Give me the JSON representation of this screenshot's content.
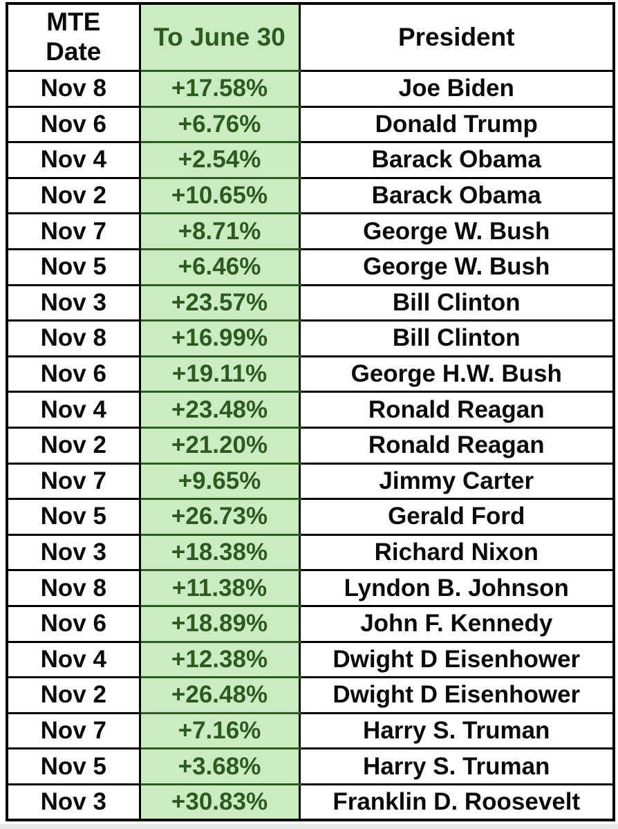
{
  "table": {
    "header": {
      "date_line1": "MTE",
      "date_line2": "Date",
      "to_june_30": "To June 30",
      "president": "President"
    },
    "rows": [
      {
        "date": "Nov 8",
        "ret": "+17.58%",
        "president": "Joe Biden"
      },
      {
        "date": "Nov 6",
        "ret": "+6.76%",
        "president": "Donald Trump"
      },
      {
        "date": "Nov 4",
        "ret": "+2.54%",
        "president": "Barack Obama"
      },
      {
        "date": "Nov 2",
        "ret": "+10.65%",
        "president": "Barack Obama"
      },
      {
        "date": "Nov 7",
        "ret": "+8.71%",
        "president": "George W. Bush"
      },
      {
        "date": "Nov 5",
        "ret": "+6.46%",
        "president": "George W. Bush"
      },
      {
        "date": "Nov 3",
        "ret": "+23.57%",
        "president": "Bill Clinton"
      },
      {
        "date": "Nov 8",
        "ret": "+16.99%",
        "president": "Bill Clinton"
      },
      {
        "date": "Nov 6",
        "ret": "+19.11%",
        "president": "George H.W. Bush"
      },
      {
        "date": "Nov 4",
        "ret": "+23.48%",
        "president": "Ronald Reagan"
      },
      {
        "date": "Nov 2",
        "ret": "+21.20%",
        "president": "Ronald Reagan"
      },
      {
        "date": "Nov 7",
        "ret": "+9.65%",
        "president": "Jimmy Carter"
      },
      {
        "date": "Nov 5",
        "ret": "+26.73%",
        "president": "Gerald Ford"
      },
      {
        "date": "Nov 3",
        "ret": "+18.38%",
        "president": "Richard Nixon"
      },
      {
        "date": "Nov 8",
        "ret": "+11.38%",
        "president": "Lyndon B. Johnson"
      },
      {
        "date": "Nov 6",
        "ret": "+18.89%",
        "president": "John F. Kennedy"
      },
      {
        "date": "Nov 4",
        "ret": "+12.38%",
        "president": "Dwight D Eisenhower"
      },
      {
        "date": "Nov 2",
        "ret": "+26.48%",
        "president": "Dwight D Eisenhower"
      },
      {
        "date": "Nov 7",
        "ret": "+7.16%",
        "president": "Harry S. Truman"
      },
      {
        "date": "Nov 5",
        "ret": "+3.68%",
        "president": "Harry S. Truman"
      },
      {
        "date": "Nov 3",
        "ret": "+30.83%",
        "president": "Franklin D. Roosevelt"
      }
    ]
  },
  "colors": {
    "green_cell_background": "#cbecc3",
    "green_text": "#2d5a21",
    "green_border": "#2e5a23",
    "black_border": "#000000",
    "text_black": "#0a0a0a",
    "page_background": "#ffffff",
    "bottom_strip_gray": "#e9e9e9"
  },
  "chart_data": {
    "type": "table",
    "title": "",
    "columns": [
      "MTE Date",
      "To June 30",
      "President"
    ],
    "rows": [
      [
        "Nov 8",
        "+17.58%",
        "Joe Biden"
      ],
      [
        "Nov 6",
        "+6.76%",
        "Donald Trump"
      ],
      [
        "Nov 4",
        "+2.54%",
        "Barack Obama"
      ],
      [
        "Nov 2",
        "+10.65%",
        "Barack Obama"
      ],
      [
        "Nov 7",
        "+8.71%",
        "George W. Bush"
      ],
      [
        "Nov 5",
        "+6.46%",
        "George W. Bush"
      ],
      [
        "Nov 3",
        "+23.57%",
        "Bill Clinton"
      ],
      [
        "Nov 8",
        "+16.99%",
        "Bill Clinton"
      ],
      [
        "Nov 6",
        "+19.11%",
        "George H.W. Bush"
      ],
      [
        "Nov 4",
        "+23.48%",
        "Ronald Reagan"
      ],
      [
        "Nov 2",
        "+21.20%",
        "Ronald Reagan"
      ],
      [
        "Nov 7",
        "+9.65%",
        "Jimmy Carter"
      ],
      [
        "Nov 5",
        "+26.73%",
        "Gerald Ford"
      ],
      [
        "Nov 3",
        "+18.38%",
        "Richard Nixon"
      ],
      [
        "Nov 8",
        "+11.38%",
        "Lyndon B. Johnson"
      ],
      [
        "Nov 6",
        "+18.89%",
        "John F. Kennedy"
      ],
      [
        "Nov 4",
        "+12.38%",
        "Dwight D Eisenhower"
      ],
      [
        "Nov 2",
        "+26.48%",
        "Dwight D Eisenhower"
      ],
      [
        "Nov 7",
        "+7.16%",
        "Harry S. Truman"
      ],
      [
        "Nov 5",
        "+3.68%",
        "Harry S. Truman"
      ],
      [
        "Nov 3",
        "+30.83%",
        "Franklin D. Roosevelt"
      ]
    ],
    "values_pct_to_june_30": [
      17.58,
      6.76,
      2.54,
      10.65,
      8.71,
      6.46,
      23.57,
      16.99,
      19.11,
      23.48,
      21.2,
      9.65,
      26.73,
      18.38,
      11.38,
      18.89,
      12.38,
      26.48,
      7.16,
      3.68,
      30.83
    ]
  }
}
